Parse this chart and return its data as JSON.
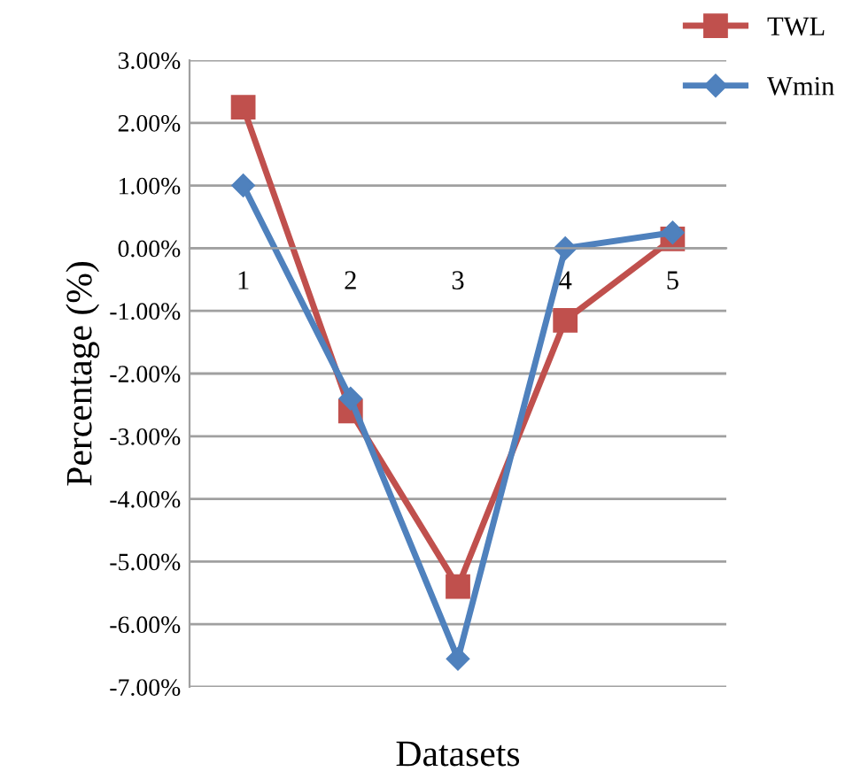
{
  "chart_data": {
    "type": "line",
    "xlabel": "Datasets",
    "ylabel": "Percentage (%)",
    "categories": [
      "1",
      "2",
      "3",
      "4",
      "5"
    ],
    "series": [
      {
        "name": "TWL",
        "color": "#c0504d",
        "marker": "square",
        "values": [
          2.25,
          -2.6,
          -5.4,
          -1.15,
          0.15
        ]
      },
      {
        "name": "Wmin",
        "color": "#4f81bd",
        "marker": "diamond",
        "values": [
          1.0,
          -2.4,
          -6.55,
          0.0,
          0.25
        ]
      }
    ],
    "ylim": [
      -7,
      3
    ],
    "yticks": [
      {
        "value": 3,
        "label": "3.00%"
      },
      {
        "value": 2,
        "label": "2.00%"
      },
      {
        "value": 1,
        "label": "1.00%"
      },
      {
        "value": 0,
        "label": "0.00%"
      },
      {
        "value": -1,
        "label": "-1.00%"
      },
      {
        "value": -2,
        "label": "-2.00%"
      },
      {
        "value": -3,
        "label": "-3.00%"
      },
      {
        "value": -4,
        "label": "-4.00%"
      },
      {
        "value": -5,
        "label": "-5.00%"
      },
      {
        "value": -6,
        "label": "-6.00%"
      },
      {
        "value": -7,
        "label": "-7.00%"
      }
    ],
    "grid": "y",
    "legend": "top right",
    "line_style": "solid"
  }
}
